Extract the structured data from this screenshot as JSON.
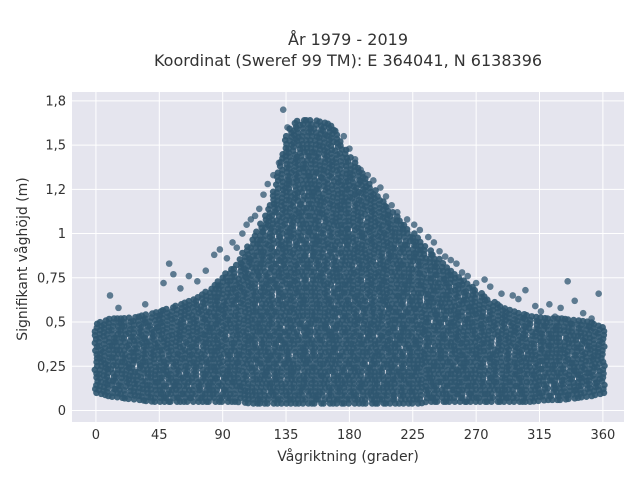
{
  "chart_data": {
    "type": "scatter",
    "title": [
      "År 1979 - 2019",
      "Koordinat (Sweref 99 TM): E 364041, N 6138396"
    ],
    "xlabel": "Vågriktning (grader)",
    "ylabel": "Signifikant våghöjd (m)",
    "xlim": [
      -17,
      375
    ],
    "ylim": [
      -0.065,
      1.8
    ],
    "x_ticks": [
      0,
      45,
      90,
      135,
      180,
      225,
      270,
      315,
      360
    ],
    "x_tick_labels": [
      "0",
      "45",
      "90",
      "135",
      "180",
      "225",
      "270",
      "315",
      "360"
    ],
    "y_ticks": [
      0,
      0.25,
      0.5,
      0.75,
      1,
      1.25,
      1.5,
      1.75
    ],
    "y_tick_labels": [
      "0",
      "0,25",
      "0,5",
      "0,75",
      "1",
      "1,2",
      "1,5",
      "1,8"
    ],
    "grid": true,
    "legend": "none",
    "background_color": "#e5e5ee",
    "marker_color": "#2f5670",
    "series": [
      {
        "envelope_x": [
          0,
          10,
          20,
          30,
          40,
          50,
          60,
          70,
          80,
          90,
          100,
          110,
          120,
          125,
          130,
          135,
          140,
          145,
          150,
          155,
          160,
          165,
          170,
          175,
          180,
          185,
          190,
          195,
          200,
          205,
          210,
          215,
          220,
          225,
          230,
          235,
          240,
          245,
          250,
          255,
          260,
          270,
          280,
          290,
          300,
          310,
          320,
          330,
          340,
          350,
          360
        ],
        "envelope_max": [
          0.49,
          0.52,
          0.52,
          0.53,
          0.55,
          0.57,
          0.6,
          0.63,
          0.68,
          0.75,
          0.83,
          0.95,
          1.1,
          1.2,
          1.38,
          1.55,
          1.62,
          1.64,
          1.64,
          1.64,
          1.63,
          1.62,
          1.6,
          1.5,
          1.43,
          1.38,
          1.33,
          1.28,
          1.22,
          1.17,
          1.12,
          1.08,
          1.04,
          1.0,
          0.96,
          0.92,
          0.88,
          0.84,
          0.8,
          0.77,
          0.74,
          0.68,
          0.62,
          0.58,
          0.55,
          0.53,
          0.52,
          0.52,
          0.51,
          0.5,
          0.47
        ],
        "envelope_min": [
          0.1,
          0.08,
          0.07,
          0.06,
          0.05,
          0.05,
          0.05,
          0.05,
          0.05,
          0.05,
          0.05,
          0.04,
          0.04,
          0.04,
          0.04,
          0.04,
          0.04,
          0.04,
          0.04,
          0.04,
          0.04,
          0.04,
          0.04,
          0.04,
          0.04,
          0.04,
          0.04,
          0.04,
          0.04,
          0.04,
          0.04,
          0.04,
          0.04,
          0.04,
          0.04,
          0.05,
          0.05,
          0.05,
          0.05,
          0.05,
          0.05,
          0.05,
          0.05,
          0.05,
          0.05,
          0.05,
          0.06,
          0.06,
          0.07,
          0.08,
          0.1
        ],
        "outliers": [
          [
            10,
            0.65
          ],
          [
            16,
            0.58
          ],
          [
            35,
            0.6
          ],
          [
            48,
            0.72
          ],
          [
            52,
            0.83
          ],
          [
            55,
            0.77
          ],
          [
            60,
            0.69
          ],
          [
            66,
            0.76
          ],
          [
            72,
            0.73
          ],
          [
            78,
            0.79
          ],
          [
            84,
            0.88
          ],
          [
            88,
            0.91
          ],
          [
            93,
            0.86
          ],
          [
            97,
            0.95
          ],
          [
            100,
            0.92
          ],
          [
            104,
            1.0
          ],
          [
            107,
            1.05
          ],
          [
            110,
            1.08
          ],
          [
            113,
            1.1
          ],
          [
            116,
            1.14
          ],
          [
            119,
            1.22
          ],
          [
            122,
            1.28
          ],
          [
            126,
            1.33
          ],
          [
            130,
            1.4
          ],
          [
            133,
            1.7
          ],
          [
            136,
            1.6
          ],
          [
            176,
            1.55
          ],
          [
            180,
            1.48
          ],
          [
            184,
            1.42
          ],
          [
            188,
            1.36
          ],
          [
            193,
            1.33
          ],
          [
            197,
            1.3
          ],
          [
            202,
            1.26
          ],
          [
            206,
            1.21
          ],
          [
            210,
            1.16
          ],
          [
            214,
            1.12
          ],
          [
            221,
            1.08
          ],
          [
            226,
            1.05
          ],
          [
            230,
            1.02
          ],
          [
            236,
            0.98
          ],
          [
            240,
            0.95
          ],
          [
            244,
            0.9
          ],
          [
            248,
            0.87
          ],
          [
            252,
            0.85
          ],
          [
            256,
            0.83
          ],
          [
            260,
            0.78
          ],
          [
            264,
            0.76
          ],
          [
            270,
            0.72
          ],
          [
            276,
            0.74
          ],
          [
            280,
            0.7
          ],
          [
            288,
            0.66
          ],
          [
            296,
            0.65
          ],
          [
            300,
            0.63
          ],
          [
            305,
            0.68
          ],
          [
            312,
            0.59
          ],
          [
            316,
            0.56
          ],
          [
            322,
            0.6
          ],
          [
            326,
            0.53
          ],
          [
            330,
            0.58
          ],
          [
            335,
            0.73
          ],
          [
            340,
            0.62
          ],
          [
            346,
            0.55
          ],
          [
            352,
            0.52
          ],
          [
            357,
            0.66
          ]
        ]
      }
    ]
  }
}
